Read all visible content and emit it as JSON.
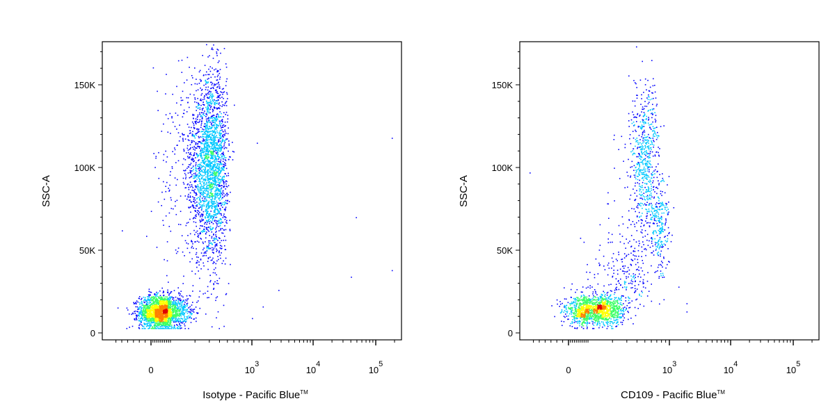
{
  "chart_data": [
    {
      "type": "scatter",
      "subtype": "flow-cytometry-density-dot-plot",
      "xlabel": "Isotype - Pacific Blue",
      "xlabel_trademark": "TM",
      "ylabel": "SSC-A",
      "x_scale": "biexponential",
      "ylim": [
        0,
        175000
      ],
      "xlim": [
        -300,
        200000
      ],
      "y_ticks": [
        {
          "value": 0,
          "label": "0"
        },
        {
          "value": 50000,
          "label": "50K"
        },
        {
          "value": 100000,
          "label": "100K"
        },
        {
          "value": 150000,
          "label": "150K"
        }
      ],
      "x_ticks": [
        {
          "value": 0,
          "label": "0",
          "exp": ""
        },
        {
          "value": 1000,
          "label": "10",
          "exp": "3"
        },
        {
          "value": 10000,
          "label": "10",
          "exp": "4"
        },
        {
          "value": 100000,
          "label": "10",
          "exp": "5"
        }
      ],
      "clusters": [
        {
          "name": "",
          "x_center": 50,
          "x_spread": 55,
          "y_center": 13000,
          "y_spread": 5000,
          "share": 0.45
        },
        {
          "name": "",
          "x_center": 300,
          "x_spread": 90,
          "y_center": 100000,
          "y_spread": 28000,
          "share": 0.5
        }
      ],
      "outliers": [
        [
          1000,
          9000
        ],
        [
          1500,
          16000
        ],
        [
          2700,
          26000
        ],
        [
          40000,
          34000
        ],
        [
          48000,
          70000
        ],
        [
          180000,
          38000
        ],
        [
          180000,
          118000
        ],
        [
          1200,
          115000
        ],
        [
          600,
          138000
        ],
        [
          -150,
          62000
        ]
      ],
      "colormap": [
        "#0000ff",
        "#00c8ff",
        "#3cff64",
        "#ffff00",
        "#ff8000",
        "#e00000"
      ],
      "grid": false,
      "legend": "none"
    },
    {
      "type": "scatter",
      "subtype": "flow-cytometry-density-dot-plot",
      "xlabel": "CD109 - Pacific Blue",
      "xlabel_trademark": "TM",
      "ylabel": "SSC-A",
      "x_scale": "biexponential",
      "ylim": [
        0,
        175000
      ],
      "xlim": [
        -300,
        200000
      ],
      "y_ticks": [
        {
          "value": 0,
          "label": "0"
        },
        {
          "value": 50000,
          "label": "50K"
        },
        {
          "value": 100000,
          "label": "100K"
        },
        {
          "value": 150000,
          "label": "150K"
        }
      ],
      "x_ticks": [
        {
          "value": 0,
          "label": "0",
          "exp": ""
        },
        {
          "value": 1000,
          "label": "10",
          "exp": "3"
        },
        {
          "value": 10000,
          "label": "10",
          "exp": "4"
        },
        {
          "value": 100000,
          "label": "10",
          "exp": "5"
        }
      ],
      "clusters": [
        {
          "name": "",
          "x_center": 120,
          "x_spread": 65,
          "y_center": 14000,
          "y_spread": 4500,
          "share": 0.55
        },
        {
          "name": "",
          "x_center": 500,
          "x_spread": 110,
          "y_center": 105000,
          "y_spread": 22000,
          "share": 0.25
        },
        {
          "name": "",
          "x_center": 750,
          "x_spread": 110,
          "y_center": 65000,
          "y_spread": 15000,
          "share": 0.1
        },
        {
          "name": "",
          "x_center": 300,
          "x_spread": 120,
          "y_center": 35000,
          "y_spread": 15000,
          "share": 0.1
        }
      ],
      "outliers": [
        [
          -200,
          97000
        ],
        [
          1400,
          28000
        ],
        [
          1900,
          18000
        ],
        [
          1900,
          13000
        ],
        [
          600,
          165000
        ]
      ],
      "colormap": [
        "#0000ff",
        "#00c8ff",
        "#3cff64",
        "#ffff00",
        "#ff8000",
        "#e00000"
      ],
      "grid": false,
      "legend": "none"
    }
  ]
}
